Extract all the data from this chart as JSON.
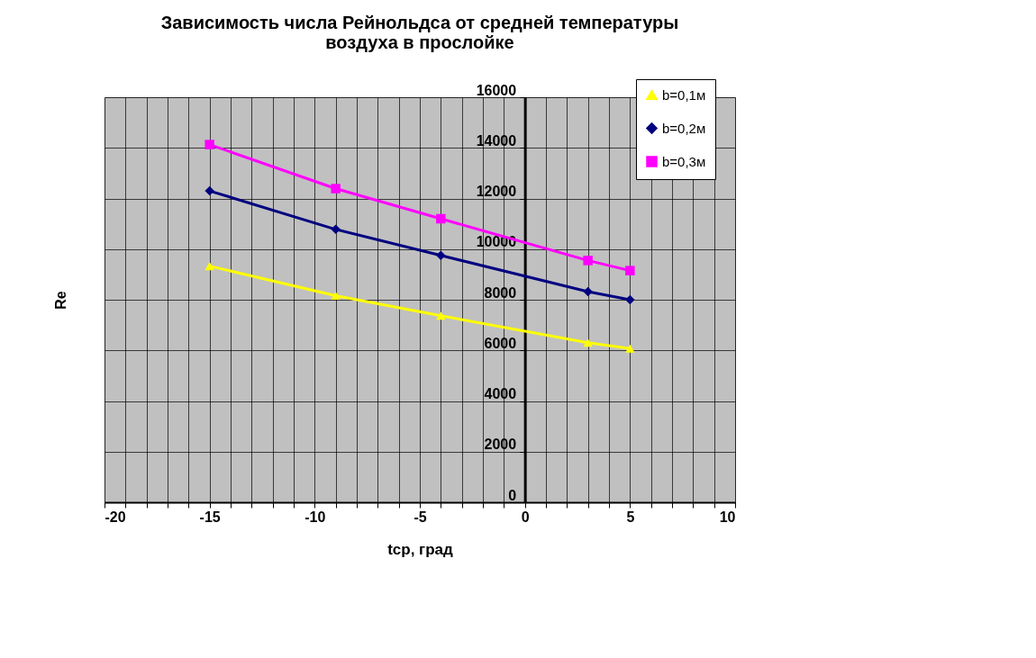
{
  "chart_data": {
    "type": "line",
    "title": [
      "Зависимость числа Рейнольдса от средней температуры",
      "воздуха в прослойке"
    ],
    "xlabel": "tср, град",
    "ylabel": "Re",
    "x": [
      -15,
      -9,
      -4,
      3,
      5
    ],
    "series": [
      {
        "name": "b=0,1м",
        "color": "#ffff00",
        "marker": "triangle",
        "values": [
          9330,
          8160,
          7370,
          6300,
          6070
        ]
      },
      {
        "name": "b=0,2м",
        "color": "#000080",
        "marker": "diamond",
        "values": [
          12300,
          10780,
          9750,
          8320,
          8000
        ]
      },
      {
        "name": "b=0,3м",
        "color": "#ff00ff",
        "marker": "square",
        "values": [
          14130,
          12390,
          11200,
          9550,
          9150
        ]
      }
    ],
    "xlim": [
      -20,
      10
    ],
    "ylim": [
      0,
      16000
    ],
    "xticks": [
      -20,
      {
        "value": -19,
        "label": null
      },
      {
        "value": -18,
        "label": null
      },
      {
        "value": -17,
        "label": null
      },
      {
        "value": -16,
        "label": null
      },
      -15,
      {
        "value": -14,
        "label": null
      },
      {
        "value": -13,
        "label": null
      },
      {
        "value": -12,
        "label": null
      },
      {
        "value": -11,
        "label": null
      },
      -10,
      {
        "value": -9,
        "label": null
      },
      {
        "value": -8,
        "label": null
      },
      {
        "value": -7,
        "label": null
      },
      {
        "value": -6,
        "label": null
      },
      -5,
      {
        "value": -4,
        "label": null
      },
      {
        "value": -3,
        "label": null
      },
      {
        "value": -2,
        "label": null
      },
      {
        "value": -1,
        "label": null
      },
      0,
      {
        "value": 1,
        "label": null
      },
      {
        "value": 2,
        "label": null
      },
      {
        "value": 3,
        "label": null
      },
      {
        "value": 4,
        "label": null
      },
      5,
      {
        "value": 6,
        "label": null
      },
      {
        "value": 7,
        "label": null
      },
      {
        "value": 8,
        "label": null
      },
      {
        "value": 9,
        "label": null
      },
      10
    ],
    "yticks": [
      0,
      2000,
      4000,
      6000,
      8000,
      10000,
      12000,
      14000,
      16000
    ],
    "grid": true,
    "legend": "top right",
    "line_style": "solid"
  }
}
